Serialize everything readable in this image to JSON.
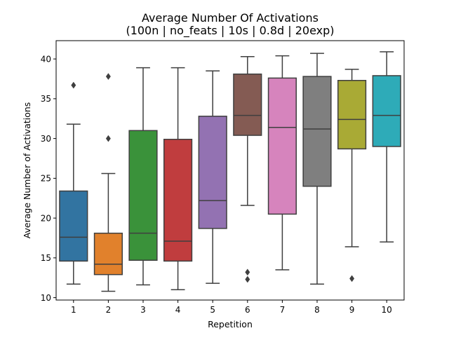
{
  "chart_data": {
    "type": "box",
    "title": "Average Number Of Activations",
    "subtitle": "(100n | no_feats | 10s | 0.8d | 20exp)",
    "xlabel": "Repetition",
    "ylabel": "Average Number of Activations",
    "categories": [
      "1",
      "2",
      "3",
      "4",
      "5",
      "6",
      "7",
      "8",
      "9",
      "10"
    ],
    "ylim": [
      9.7,
      42.3
    ],
    "yticks": [
      10,
      15,
      20,
      25,
      30,
      35,
      40
    ],
    "ytick_labels": [
      "10",
      "15",
      "20",
      "25",
      "30",
      "35",
      "40"
    ],
    "grid": false,
    "boxes": [
      {
        "category": "1",
        "color": "#3274a1",
        "whisker_low": 11.7,
        "q1": 14.6,
        "median": 17.6,
        "q3": 23.4,
        "whisker_high": 31.8,
        "outliers": [
          36.7
        ]
      },
      {
        "category": "2",
        "color": "#e1812c",
        "whisker_low": 10.8,
        "q1": 12.9,
        "median": 14.2,
        "q3": 18.1,
        "whisker_high": 25.6,
        "outliers": [
          30.0,
          37.8
        ]
      },
      {
        "category": "3",
        "color": "#3a923a",
        "whisker_low": 11.6,
        "q1": 14.7,
        "median": 18.1,
        "q3": 31.0,
        "whisker_high": 38.9,
        "outliers": []
      },
      {
        "category": "4",
        "color": "#c03d3e",
        "whisker_low": 11.0,
        "q1": 14.6,
        "median": 17.1,
        "q3": 29.9,
        "whisker_high": 38.9,
        "outliers": []
      },
      {
        "category": "5",
        "color": "#9372b2",
        "whisker_low": 11.8,
        "q1": 18.7,
        "median": 22.2,
        "q3": 32.8,
        "whisker_high": 38.5,
        "outliers": []
      },
      {
        "category": "6",
        "color": "#845b53",
        "whisker_low": 21.6,
        "q1": 30.4,
        "median": 32.9,
        "q3": 38.1,
        "whisker_high": 40.3,
        "outliers": [
          12.3,
          13.2
        ]
      },
      {
        "category": "7",
        "color": "#d684bd",
        "whisker_low": 13.5,
        "q1": 20.5,
        "median": 31.4,
        "q3": 37.6,
        "whisker_high": 40.4,
        "outliers": []
      },
      {
        "category": "8",
        "color": "#7f7f7f",
        "whisker_low": 11.7,
        "q1": 24.0,
        "median": 31.2,
        "q3": 37.8,
        "whisker_high": 40.7,
        "outliers": []
      },
      {
        "category": "9",
        "color": "#a9aa35",
        "whisker_low": 16.4,
        "q1": 28.7,
        "median": 32.4,
        "q3": 37.3,
        "whisker_high": 38.7,
        "outliers": [
          12.4
        ]
      },
      {
        "category": "10",
        "color": "#2eabb8",
        "whisker_low": 17.0,
        "q1": 29.0,
        "median": 32.9,
        "q3": 37.9,
        "whisker_high": 40.9,
        "outliers": []
      }
    ]
  }
}
